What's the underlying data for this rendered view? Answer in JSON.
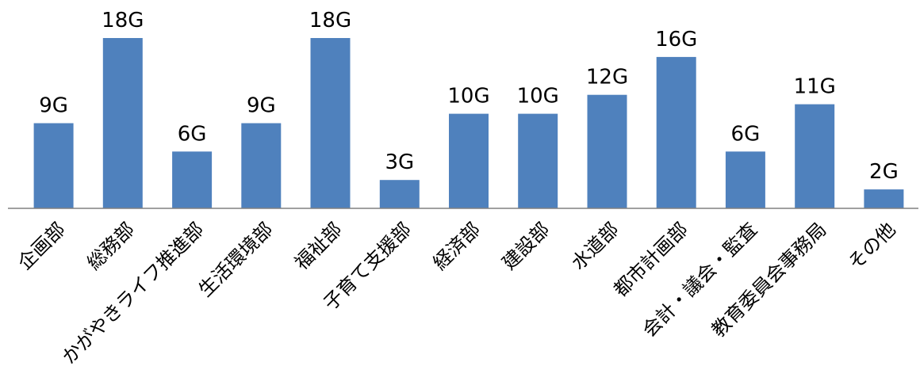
{
  "chart_data": {
    "type": "bar",
    "title": "",
    "xlabel": "",
    "ylabel": "",
    "ylim": [
      0,
      18
    ],
    "grid": false,
    "legend": "none",
    "bar_color": "#4f81bd",
    "categories": [
      "企画部",
      "総務部",
      "かがやきライフ推進部",
      "生活環境部",
      "福祉部",
      "子育て支援部",
      "経済部",
      "建設部",
      "水道部",
      "都市計画部",
      "会計・議会・監査",
      "教育委員会事務局",
      "その他"
    ],
    "values": [
      9,
      18,
      6,
      9,
      18,
      3,
      10,
      10,
      12,
      16,
      6,
      11,
      2
    ],
    "data_labels": [
      "9G",
      "18G",
      "6G",
      "9G",
      "18G",
      "3G",
      "10G",
      "10G",
      "12G",
      "16G",
      "6G",
      "11G",
      "2G"
    ]
  }
}
